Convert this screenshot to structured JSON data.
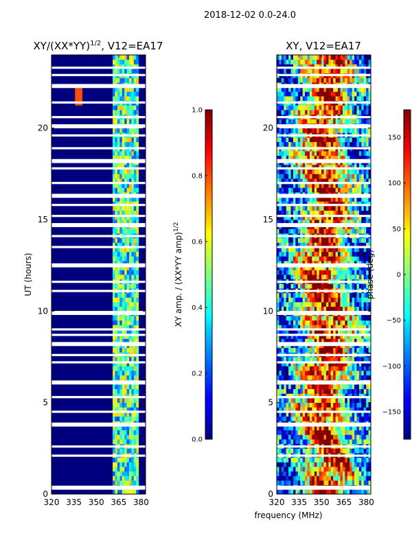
{
  "figure_title": "2018-12-02 0.0-24.0",
  "shared_xlabel": "frequency (MHz)",
  "colors": {
    "background": "#ffffff",
    "panel_fill": "#00007f",
    "axis": "#000000",
    "flag_row": "#ffffff"
  },
  "colormap": "jet",
  "chart_data": [
    {
      "type": "heatmap",
      "title_prefix": "XY/(XX*YY)",
      "title_superscript": "1/2",
      "title_suffix": ", V12=EA17",
      "xlabel": "",
      "ylabel": "UT (hours)",
      "xlim": [
        320,
        383
      ],
      "ylim": [
        0,
        24
      ],
      "xticks": [
        320,
        335,
        350,
        365,
        380
      ],
      "yticks": [
        0,
        5,
        10,
        15,
        20
      ],
      "colorbar": {
        "label_prefix": "XY amp. / (XX*YY amp)",
        "label_superscript": "1/2",
        "range": [
          0.0,
          1.0
        ],
        "ticks": [
          "0.0",
          "0.2",
          "0.4",
          "0.6",
          "0.8",
          "1.0"
        ]
      },
      "active_band_mhz": [
        361,
        378
      ],
      "hot_spot": {
        "freq_mhz": 338,
        "ut_hours": 21.8,
        "value": 0.8
      },
      "flagged_ut_hours": [
        0.35,
        2.1,
        2.6,
        3.8,
        4.5,
        5.3,
        6.1,
        7.2,
        7.6,
        8.2,
        8.7,
        9.0,
        9.9,
        11.1,
        11.6,
        12.5,
        13.5,
        14.1,
        14.7,
        15.2,
        15.8,
        16.3,
        17.0,
        17.8,
        18.2,
        18.9,
        19.6,
        20.1,
        20.6,
        21.4,
        22.3,
        22.9,
        23.3
      ]
    },
    {
      "type": "heatmap",
      "title": "XY, V12=EA17",
      "xlabel": "frequency (MHz)",
      "ylabel": "",
      "xlim": [
        320,
        383
      ],
      "ylim": [
        0,
        24
      ],
      "xticks": [
        320,
        335,
        350,
        365,
        380
      ],
      "yticks": [
        0,
        5,
        10,
        15,
        20
      ],
      "colorbar": {
        "label": "phase (deg)",
        "range": [
          -180,
          180
        ],
        "ticks": [
          "−150",
          "−100",
          "−50",
          "0",
          "50",
          "100",
          "150"
        ]
      },
      "flagged_ut_hours": [
        0.35,
        2.1,
        2.6,
        3.8,
        4.5,
        5.3,
        6.1,
        7.2,
        7.6,
        8.2,
        8.7,
        9.0,
        9.9,
        11.1,
        11.6,
        12.5,
        13.5,
        14.1,
        14.7,
        15.2,
        15.8,
        16.3,
        17.0,
        17.8,
        18.2,
        18.9,
        19.6,
        20.1,
        20.6,
        21.4,
        22.3,
        22.9,
        23.3
      ]
    }
  ]
}
